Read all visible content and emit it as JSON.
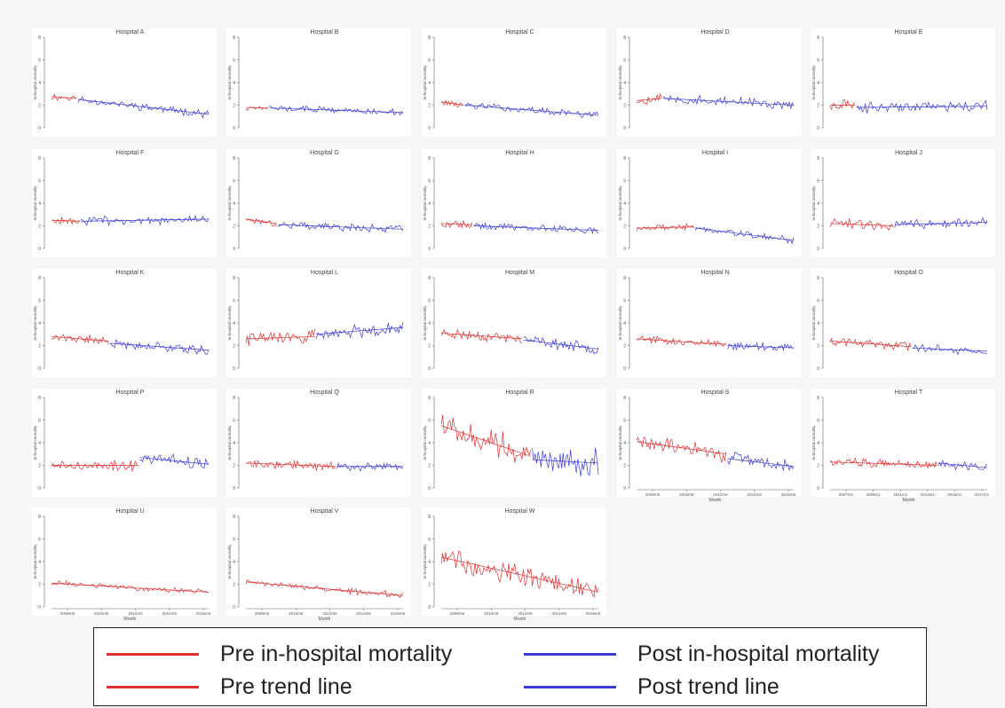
{
  "colors": {
    "pre": "#e03030",
    "post": "#3a3ad8"
  },
  "legend": {
    "pre_mortality": "Pre in-hospital mortality",
    "post_mortality": "Post in-hospital mortality",
    "pre_trend": "Pre trend line",
    "post_trend": "Post trend line"
  },
  "chart_data": [
    {
      "type": "line",
      "title": "Hospital A",
      "ylabel": "in-hospital mortality",
      "ylim": [
        0,
        8
      ],
      "yticks": [
        0,
        2,
        4,
        6,
        8
      ],
      "n_months": 108,
      "change_month": 18,
      "pre_trend": [
        2.75,
        2.6
      ],
      "post_trend": [
        2.5,
        1.2
      ],
      "noise": 0.25,
      "seed": 11
    },
    {
      "type": "line",
      "title": "Hospital B",
      "ylabel": "in-hospital mortality",
      "ylim": [
        0,
        8
      ],
      "yticks": [
        0,
        2,
        4,
        6,
        8
      ],
      "n_months": 108,
      "change_month": 16,
      "pre_trend": [
        1.8,
        1.75
      ],
      "post_trend": [
        1.75,
        1.35
      ],
      "noise": 0.2,
      "seed": 12
    },
    {
      "type": "line",
      "title": "Hospital C",
      "ylabel": "in-hospital mortality",
      "ylim": [
        0,
        8
      ],
      "yticks": [
        0,
        2,
        4,
        6,
        8
      ],
      "n_months": 108,
      "change_month": 16,
      "pre_trend": [
        2.3,
        2.0
      ],
      "post_trend": [
        2.0,
        1.1
      ],
      "noise": 0.22,
      "seed": 13
    },
    {
      "type": "line",
      "title": "Hospital D",
      "ylabel": "in-hospital mortality",
      "ylim": [
        0,
        8
      ],
      "yticks": [
        0,
        2,
        4,
        6,
        8
      ],
      "n_months": 108,
      "change_month": 18,
      "pre_trend": [
        2.4,
        2.6
      ],
      "post_trend": [
        2.6,
        2.0
      ],
      "noise": 0.35,
      "seed": 14
    },
    {
      "type": "line",
      "title": "Hospital E",
      "ylabel": "in-hospital mortality",
      "ylim": [
        0,
        8
      ],
      "yticks": [
        0,
        2,
        4,
        6,
        8
      ],
      "n_months": 108,
      "change_month": 18,
      "pre_trend": [
        2.0,
        2.0
      ],
      "post_trend": [
        1.8,
        1.9
      ],
      "noise": 0.35,
      "seed": 15
    },
    {
      "type": "line",
      "title": "Hospital F",
      "ylabel": "in-hospital mortality",
      "ylim": [
        0,
        8
      ],
      "yticks": [
        0,
        2,
        4,
        6,
        8
      ],
      "n_months": 108,
      "change_month": 20,
      "pre_trend": [
        2.5,
        2.4
      ],
      "post_trend": [
        2.4,
        2.6
      ],
      "noise": 0.3,
      "seed": 16
    },
    {
      "type": "line",
      "title": "Hospital G",
      "ylabel": "in-hospital mortality",
      "ylim": [
        0,
        8
      ],
      "yticks": [
        0,
        2,
        4,
        6,
        8
      ],
      "n_months": 108,
      "change_month": 22,
      "pre_trend": [
        2.6,
        2.2
      ],
      "post_trend": [
        2.1,
        1.7
      ],
      "noise": 0.25,
      "seed": 17
    },
    {
      "type": "line",
      "title": "Hospital H",
      "ylabel": "in-hospital mortality",
      "ylim": [
        0,
        8
      ],
      "yticks": [
        0,
        2,
        4,
        6,
        8
      ],
      "n_months": 108,
      "change_month": 22,
      "pre_trend": [
        2.2,
        2.1
      ],
      "post_trend": [
        2.0,
        1.6
      ],
      "noise": 0.25,
      "seed": 18
    },
    {
      "type": "line",
      "title": "Hospital I",
      "ylabel": "in-hospital mortality",
      "ylim": [
        0,
        8
      ],
      "yticks": [
        0,
        2,
        4,
        6,
        8
      ],
      "n_months": 108,
      "change_month": 40,
      "pre_trend": [
        1.8,
        1.9
      ],
      "post_trend": [
        1.8,
        0.7
      ],
      "noise": 0.22,
      "seed": 19
    },
    {
      "type": "line",
      "title": "Hospital J",
      "ylabel": "in-hospital mortality",
      "ylim": [
        0,
        8
      ],
      "yticks": [
        0,
        2,
        4,
        6,
        8
      ],
      "n_months": 108,
      "change_month": 44,
      "pre_trend": [
        2.2,
        2.0
      ],
      "post_trend": [
        2.1,
        2.3
      ],
      "noise": 0.3,
      "seed": 20
    },
    {
      "type": "line",
      "title": "Hospital K",
      "ylabel": "in-hospital mortality",
      "ylim": [
        0,
        8
      ],
      "yticks": [
        0,
        2,
        4,
        6,
        8
      ],
      "n_months": 108,
      "change_month": 40,
      "pre_trend": [
        2.8,
        2.4
      ],
      "post_trend": [
        2.2,
        1.6
      ],
      "noise": 0.3,
      "seed": 21
    },
    {
      "type": "line",
      "title": "Hospital L",
      "ylabel": "in-hospital mortality",
      "ylim": [
        0,
        8
      ],
      "yticks": [
        0,
        2,
        4,
        6,
        8
      ],
      "n_months": 108,
      "change_month": 48,
      "pre_trend": [
        2.6,
        2.8
      ],
      "post_trend": [
        3.0,
        3.6
      ],
      "noise": 0.45,
      "seed": 22
    },
    {
      "type": "line",
      "title": "Hospital M",
      "ylabel": "in-hospital mortality",
      "ylim": [
        0,
        8
      ],
      "yticks": [
        0,
        2,
        4,
        6,
        8
      ],
      "n_months": 108,
      "change_month": 56,
      "pre_trend": [
        3.1,
        2.6
      ],
      "post_trend": [
        2.5,
        1.7
      ],
      "noise": 0.35,
      "seed": 23
    },
    {
      "type": "line",
      "title": "Hospital N",
      "ylabel": "in-hospital mortality",
      "ylim": [
        0,
        8
      ],
      "yticks": [
        0,
        2,
        4,
        6,
        8
      ],
      "n_months": 108,
      "change_month": 62,
      "pre_trend": [
        2.6,
        2.1
      ],
      "post_trend": [
        2.0,
        1.8
      ],
      "noise": 0.25,
      "seed": 24
    },
    {
      "type": "line",
      "title": "Hospital O",
      "ylabel": "in-hospital mortality",
      "ylim": [
        0,
        8
      ],
      "yticks": [
        0,
        2,
        4,
        6,
        8
      ],
      "n_months": 108,
      "change_month": 56,
      "pre_trend": [
        2.4,
        1.9
      ],
      "post_trend": [
        1.8,
        1.5
      ],
      "noise": 0.28,
      "seed": 25
    },
    {
      "type": "line",
      "title": "Hospital P",
      "ylabel": "in-hospital mortality",
      "ylim": [
        0,
        8
      ],
      "yticks": [
        0,
        2,
        4,
        6,
        8
      ],
      "n_months": 108,
      "change_month": 60,
      "pre_trend": [
        2.0,
        2.0
      ],
      "post_trend": [
        2.7,
        2.1
      ],
      "noise": 0.4,
      "seed": 26
    },
    {
      "type": "line",
      "title": "Hospital Q",
      "ylabel": "in-hospital mortality",
      "ylim": [
        0,
        8
      ],
      "yticks": [
        0,
        2,
        4,
        6,
        8
      ],
      "n_months": 108,
      "change_month": 62,
      "pre_trend": [
        2.2,
        1.9
      ],
      "post_trend": [
        1.9,
        1.9
      ],
      "noise": 0.28,
      "seed": 27
    },
    {
      "type": "line",
      "title": "Hospital R",
      "ylabel": "in-hospital mortality",
      "ylim": [
        0,
        8
      ],
      "yticks": [
        0,
        2,
        4,
        6,
        8
      ],
      "n_months": 108,
      "change_month": 62,
      "pre_trend": [
        5.5,
        2.8
      ],
      "post_trend": [
        2.5,
        2.2
      ],
      "noise": 0.9,
      "seed": 28
    },
    {
      "type": "line",
      "title": "Hospital S",
      "ylabel": "in-hospital mortality",
      "ylim": [
        0,
        8
      ],
      "yticks": [
        0,
        2,
        4,
        6,
        8
      ],
      "xlabel": "Month",
      "xticks": [
        "2008m6",
        "2010m6",
        "2012m6",
        "2014m6",
        "2016m6"
      ],
      "n_months": 108,
      "change_month": 62,
      "pre_trend": [
        4.1,
        3.0
      ],
      "post_trend": [
        2.6,
        1.9
      ],
      "noise": 0.55,
      "seed": 29
    },
    {
      "type": "line",
      "title": "Hospital T",
      "ylabel": "in-hospital mortality",
      "ylim": [
        0,
        8
      ],
      "yticks": [
        0,
        2,
        4,
        6,
        8
      ],
      "xlabel": "Month",
      "xticks": [
        "2007m1",
        "2009m1",
        "2011m1",
        "2013m1",
        "2015m1",
        "2017m1"
      ],
      "n_months": 120,
      "change_month": 82,
      "pre_trend": [
        2.3,
        2.0
      ],
      "post_trend": [
        2.2,
        1.8
      ],
      "noise": 0.28,
      "seed": 30
    },
    {
      "type": "line",
      "title": "Hospital U",
      "ylabel": "in-hospital mortality",
      "ylim": [
        0,
        8
      ],
      "yticks": [
        0,
        2,
        4,
        6,
        8
      ],
      "xlabel": "Month",
      "xticks": [
        "2008m6",
        "2010m6",
        "2012m6",
        "2014m6",
        "2016m6"
      ],
      "n_months": 108,
      "change_month": 108,
      "pre_trend": [
        2.1,
        1.3
      ],
      "post_trend": null,
      "noise": 0.18,
      "seed": 31
    },
    {
      "type": "line",
      "title": "Hospital V",
      "ylabel": "in-hospital mortality",
      "ylim": [
        0,
        8
      ],
      "yticks": [
        0,
        2,
        4,
        6,
        8
      ],
      "xlabel": "Month",
      "xticks": [
        "2008m6",
        "2010m6",
        "2012m6",
        "2014m6",
        "2016m6"
      ],
      "n_months": 108,
      "change_month": 108,
      "pre_trend": [
        2.2,
        1.0
      ],
      "post_trend": null,
      "noise": 0.2,
      "seed": 32
    },
    {
      "type": "line",
      "title": "Hospital W",
      "ylabel": "in-hospital mortality",
      "ylim": [
        0,
        8
      ],
      "yticks": [
        0,
        2,
        4,
        6,
        8
      ],
      "xlabel": "Month",
      "xticks": [
        "2008m6",
        "2010m6",
        "2012m6",
        "2014m6",
        "2016m6"
      ],
      "n_months": 108,
      "change_month": 108,
      "pre_trend": [
        4.4,
        1.3
      ],
      "post_trend": null,
      "noise": 0.75,
      "seed": 33
    }
  ]
}
